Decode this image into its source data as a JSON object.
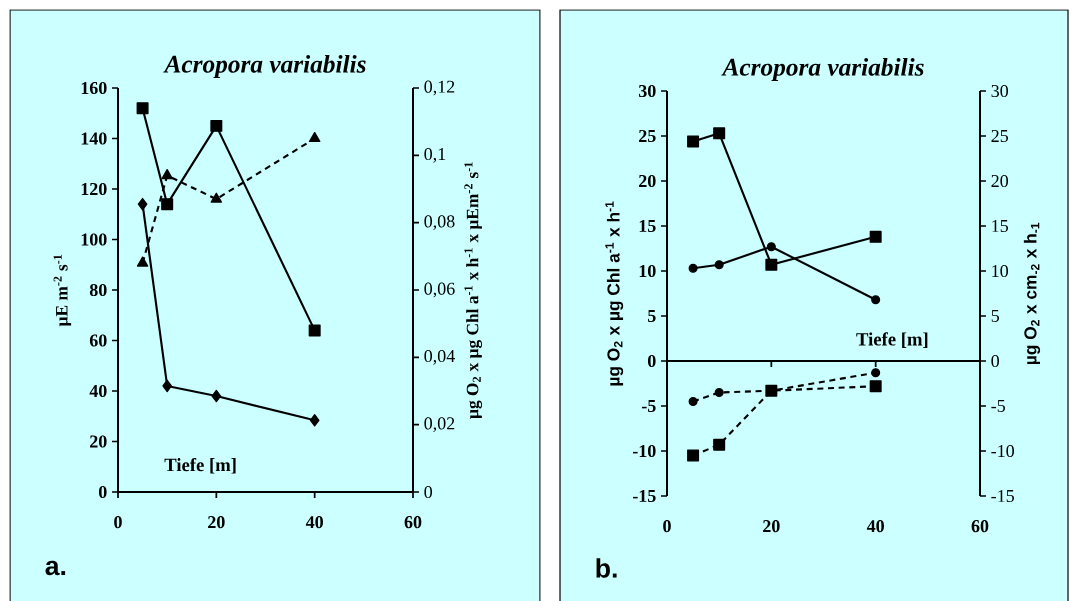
{
  "chart_data": [
    {
      "type": "line",
      "title": "*Acropora variabilis*",
      "xlabel": "Tiefe  [m]",
      "ylabel": "µE  m$^{-2}$ s$^{-1}$",
      "y2label": "µg O$_{2}$ x µg Chl a$^{-1}$ x h$^{-1}$ x µEm$^{-2}$ s$^{-1}$",
      "x": [
        5,
        10,
        20,
        40
      ],
      "xlim": [
        0,
        60
      ],
      "xticks": [
        0,
        20,
        40,
        60
      ],
      "ylim": [
        0,
        160
      ],
      "yticks": [
        0,
        20,
        40,
        60,
        80,
        100,
        120,
        140,
        160
      ],
      "y2lim": [
        0,
        0.12
      ],
      "y2ticks": [
        0,
        {
          "value": 0.02,
          "label": "0,02"
        },
        {
          "value": 0.04,
          "label": "0,04"
        },
        {
          "value": 0.06,
          "label": "0,06"
        },
        {
          "value": 0.08,
          "label": "0,08"
        },
        {
          "value": 0.1,
          "label": "0,1"
        },
        {
          "value": 0.12,
          "label": "0,12"
        }
      ],
      "annotations": [
        "a."
      ],
      "series": [
        {
          "color": "#000000",
          "values": [
            152,
            114,
            145,
            64
          ],
          "marker": "square",
          "line_style": "solid"
        },
        {
          "color": "#000000",
          "values": [
            114,
            42,
            38,
            28.4
          ],
          "marker": "diamond",
          "line_style": "solid"
        },
        {
          "color": "#000000",
          "values": [
            0.068,
            0.094,
            0.087,
            0.105
          ],
          "marker": "triangle",
          "line_style": "dashed",
          "axis": "y2"
        }
      ]
    },
    {
      "type": "line",
      "title": "*Acropora variabilis*",
      "xlabel": "Tiefe  [m]",
      "ylabel": "µg O$_{2}$ x µg Chl a$^{-1}$ x h$^{-1}$",
      "y2label": "µg O$_{2}$ x cm$_{-2}$ x h$_{-1}$",
      "x": [
        5,
        10,
        20,
        40
      ],
      "xlim": [
        0,
        60
      ],
      "xticks": [
        0,
        20,
        40,
        60
      ],
      "ylim": [
        -15,
        30
      ],
      "yticks": [
        -15,
        -10,
        -5,
        0,
        5,
        10,
        15,
        20,
        25,
        30
      ],
      "y2lim": [
        -15,
        30
      ],
      "y2ticks": [
        -15,
        -10,
        -5,
        0,
        5,
        10,
        15,
        20,
        25,
        30
      ],
      "annotations": [
        "b."
      ],
      "series": [
        {
          "color": "#000000",
          "values": [
            24.4,
            25.3,
            10.7,
            13.8
          ],
          "marker": "square",
          "line_style": "solid",
          "axis": "y2"
        },
        {
          "color": "#000000",
          "values": [
            10.3,
            10.7,
            12.7,
            6.8
          ],
          "marker": "circle",
          "line_style": "solid"
        },
        {
          "color": "#000000",
          "values": [
            -10.5,
            -9.3,
            -3.3,
            -2.8
          ],
          "marker": "square",
          "line_style": "dashed"
        },
        {
          "color": "#000000",
          "values": [
            -4.5,
            -3.5,
            -3.3,
            -1.3
          ],
          "marker": "circle",
          "line_style": "dashed"
        }
      ]
    }
  ]
}
